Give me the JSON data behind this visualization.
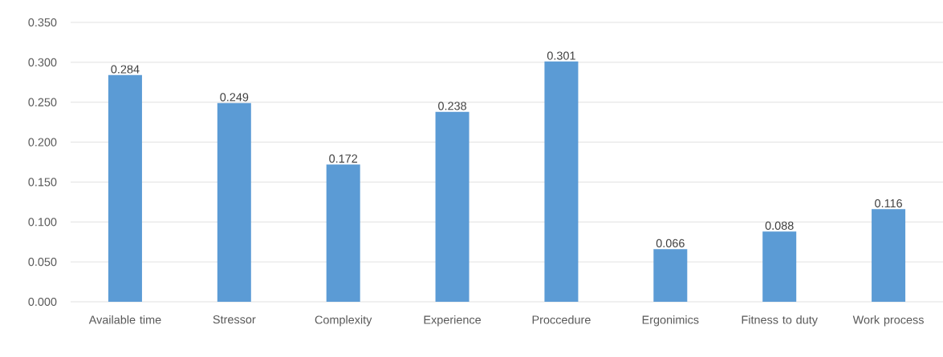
{
  "chart_data": {
    "type": "bar",
    "categories": [
      "Available time",
      "Stressor",
      "Complexity",
      "Experience",
      "Proccedure",
      "Ergonimics",
      "Fitness to duty",
      "Work process"
    ],
    "values": [
      0.284,
      0.249,
      0.172,
      0.238,
      0.301,
      0.066,
      0.088,
      0.116
    ],
    "color": "#5b9bd5",
    "ylim": [
      0,
      0.35
    ],
    "yticks": [
      {
        "value": 0,
        "label": "0.000"
      },
      {
        "value": 0.05,
        "label": "0.050"
      },
      {
        "value": 0.1,
        "label": "0.100"
      },
      {
        "value": 0.15,
        "label": "0.150"
      },
      {
        "value": 0.2,
        "label": "0.200"
      },
      {
        "value": 0.25,
        "label": "0.250"
      },
      {
        "value": 0.3,
        "label": "0.300"
      },
      {
        "value": 0.35,
        "label": "0.350"
      }
    ],
    "grid": "y",
    "data_labels": true
  }
}
